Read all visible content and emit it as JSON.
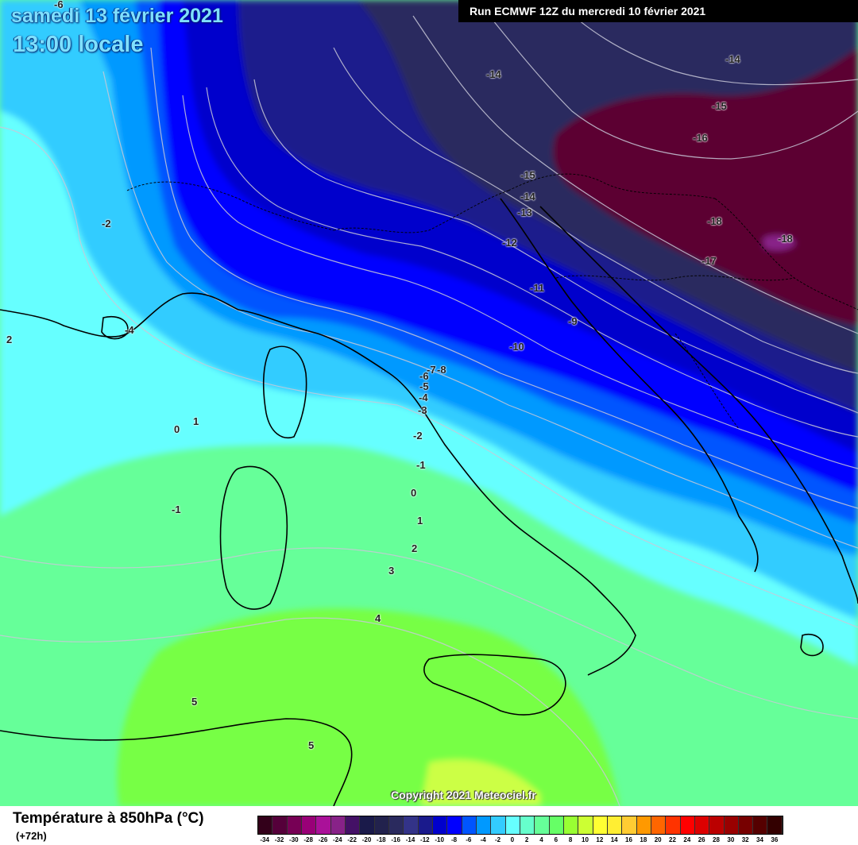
{
  "header": {
    "date": "samedi 13 février 2021",
    "local_time": "13:00 locale",
    "run": "Run ECMWF 12Z du mercredi 10 février 2021"
  },
  "copyright": "Copyright 2021 Meteociel.fr",
  "legend": {
    "title": "Température à 850hPa (°C)",
    "lead": "(+72h)",
    "ticks": [
      "-34",
      "-32",
      "-30",
      "-28",
      "-26",
      "-24",
      "-22",
      "-20",
      "-18",
      "-16",
      "-14",
      "-12",
      "-10",
      "-8",
      "-6",
      "-4",
      "-2",
      "0",
      "2",
      "4",
      "6",
      "8",
      "10",
      "12",
      "14",
      "16",
      "18",
      "20",
      "22",
      "24",
      "26",
      "28",
      "30",
      "32",
      "34",
      "36"
    ],
    "colors": [
      "#33001a",
      "#55003a",
      "#770055",
      "#990077",
      "#aa1199",
      "#882288",
      "#441166",
      "#1a1a4a",
      "#22224d",
      "#2a2a5e",
      "#333388",
      "#1a1a8c",
      "#0000cc",
      "#0000ff",
      "#0055ff",
      "#0099ff",
      "#33ccff",
      "#66ffff",
      "#66ffcc",
      "#66ff99",
      "#66ff66",
      "#99ff33",
      "#ccff33",
      "#ffff33",
      "#ffee33",
      "#ffcc33",
      "#ff9900",
      "#ff6600",
      "#ff3300",
      "#ff0000",
      "#dd0000",
      "#bb0000",
      "#990000",
      "#770000",
      "#550000",
      "#330000"
    ]
  },
  "isotherm_labels": [
    {
      "text": "-6"
    },
    {
      "text": "-14"
    },
    {
      "text": "-14"
    },
    {
      "text": "-15"
    },
    {
      "text": "-16"
    },
    {
      "text": "-15"
    },
    {
      "text": "-14"
    },
    {
      "text": "-13"
    },
    {
      "text": "-12"
    },
    {
      "text": "-18"
    },
    {
      "text": "-18"
    },
    {
      "text": "-17"
    },
    {
      "text": "-11"
    },
    {
      "text": "-9"
    },
    {
      "text": "-10"
    },
    {
      "text": "-8"
    },
    {
      "text": "-7"
    },
    {
      "text": "-6"
    },
    {
      "text": "-5"
    },
    {
      "text": "-4"
    },
    {
      "text": "-3"
    },
    {
      "text": "-2"
    },
    {
      "text": "-1"
    },
    {
      "text": "0"
    },
    {
      "text": "1"
    },
    {
      "text": "2"
    },
    {
      "text": "3"
    },
    {
      "text": "4"
    },
    {
      "text": "5"
    },
    {
      "text": "5"
    },
    {
      "text": "-2"
    },
    {
      "text": "2"
    },
    {
      "text": "-4"
    },
    {
      "text": "0"
    },
    {
      "text": "1"
    },
    {
      "text": "-1"
    }
  ]
}
